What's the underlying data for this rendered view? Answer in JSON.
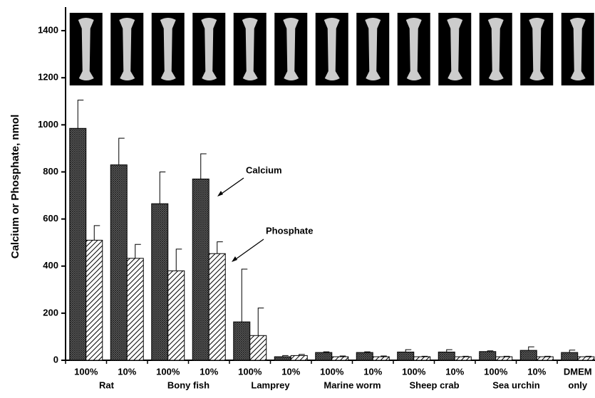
{
  "chart_data": {
    "type": "bar",
    "ylabel": "Calcium or Phosphate, nmol",
    "categories": [
      "100%",
      "10%",
      "100%",
      "10%",
      "100%",
      "10%",
      "100%",
      "10%",
      "100%",
      "10%",
      "100%",
      "10%",
      "DMEM"
    ],
    "groups": [
      "Rat",
      "Bony fish",
      "Lamprey",
      "Marine worm",
      "Sheep crab",
      "Sea urchin",
      "only"
    ],
    "series": [
      {
        "name": "Calcium",
        "pattern": "crosshatch",
        "values": [
          985,
          830,
          665,
          770,
          163,
          15,
          33,
          33,
          35,
          35,
          37,
          42,
          33
        ],
        "errors": [
          120,
          113,
          135,
          107,
          224,
          5,
          3,
          3,
          10,
          10,
          3,
          15,
          10
        ]
      },
      {
        "name": "Phosphate",
        "pattern": "diagonal",
        "values": [
          510,
          433,
          380,
          453,
          105,
          20,
          15,
          15,
          15,
          15,
          15,
          15,
          15
        ],
        "errors": [
          62,
          59,
          92,
          50,
          117,
          5,
          3,
          3,
          2,
          2,
          2,
          2,
          2
        ]
      }
    ],
    "ylim": [
      0,
      1500
    ],
    "yticks": [
      0,
      200,
      400,
      600,
      800,
      1000,
      1200,
      1400
    ]
  }
}
